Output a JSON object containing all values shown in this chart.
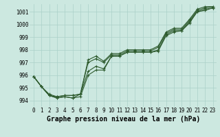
{
  "xlabel": "Graphe pression niveau de la mer (hPa)",
  "bg_color": "#cce8e0",
  "grid_color": "#aad0c8",
  "line_color": "#2d5a2d",
  "x": [
    0,
    1,
    2,
    3,
    4,
    5,
    6,
    7,
    8,
    9,
    10,
    11,
    12,
    13,
    14,
    15,
    16,
    17,
    18,
    19,
    20,
    21,
    22,
    23
  ],
  "series": [
    [
      995.9,
      995.1,
      994.4,
      994.2,
      994.3,
      994.2,
      994.3,
      996.0,
      996.4,
      996.4,
      997.5,
      997.5,
      997.8,
      997.8,
      997.8,
      997.8,
      997.9,
      999.1,
      999.4,
      999.5,
      1000.1,
      1001.0,
      1001.1,
      1001.3
    ],
    [
      995.9,
      995.1,
      994.4,
      994.2,
      994.3,
      994.2,
      994.5,
      996.3,
      996.7,
      996.5,
      997.5,
      997.5,
      997.8,
      997.8,
      997.8,
      997.8,
      998.0,
      999.2,
      999.5,
      999.5,
      1000.2,
      1001.0,
      1001.2,
      1001.3
    ],
    [
      995.9,
      995.1,
      994.4,
      994.3,
      994.4,
      994.4,
      994.5,
      997.0,
      997.3,
      997.0,
      997.6,
      997.6,
      997.9,
      997.9,
      997.9,
      997.9,
      998.2,
      999.3,
      999.6,
      999.6,
      1000.3,
      1001.1,
      1001.3,
      1001.4
    ],
    [
      995.9,
      995.1,
      994.5,
      994.3,
      994.4,
      994.4,
      994.5,
      997.2,
      997.5,
      997.1,
      997.7,
      997.7,
      998.0,
      998.0,
      998.0,
      998.0,
      998.3,
      999.4,
      999.7,
      999.7,
      1000.4,
      1001.2,
      1001.4,
      1001.4
    ]
  ],
  "ylim": [
    993.5,
    1001.6
  ],
  "yticks": [
    994,
    995,
    996,
    997,
    998,
    999,
    1000,
    1001
  ],
  "xticks": [
    0,
    1,
    2,
    3,
    4,
    5,
    6,
    7,
    8,
    9,
    10,
    11,
    12,
    13,
    14,
    15,
    16,
    17,
    18,
    19,
    20,
    21,
    22,
    23
  ],
  "marker": "+",
  "markersize": 3,
  "linewidth": 0.8,
  "xlabel_fontsize": 7,
  "tick_fontsize": 5.5
}
